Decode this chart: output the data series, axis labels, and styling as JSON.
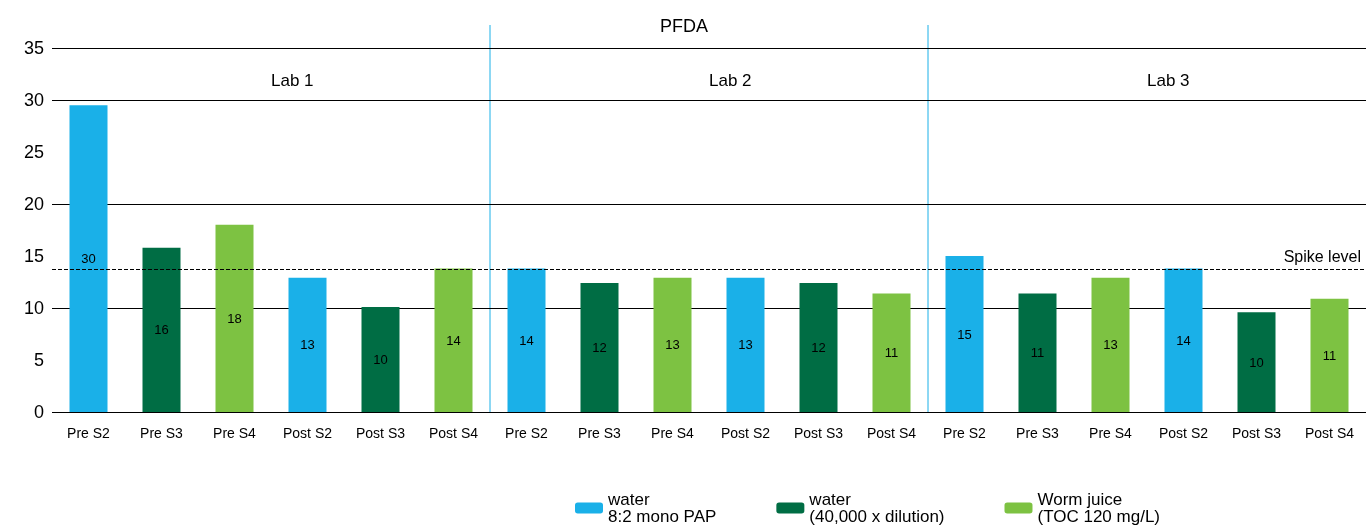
{
  "chart_data": {
    "type": "bar",
    "title": "PFDA",
    "categories": [
      "Pre S2",
      "Pre S3",
      "Pre S4",
      "Post S2",
      "Post S3",
      "Post S4",
      "Pre S2",
      "Pre S3",
      "Pre S4",
      "Post S2",
      "Post S3",
      "Post S4",
      "Pre S2",
      "Pre S3",
      "Pre S4",
      "Post S2",
      "Post S3",
      "Post S4"
    ],
    "series": [
      {
        "name": "water\n8:2 mono PAP",
        "color": "#1ab0e8",
        "values": [
          29.5,
          null,
          null,
          12.9,
          null,
          null,
          13.8,
          null,
          null,
          12.9,
          null,
          null,
          15,
          null,
          null,
          13.8,
          null,
          null
        ],
        "value_labels": [
          "30",
          null,
          null,
          "13",
          null,
          null,
          "14",
          null,
          null,
          "13",
          null,
          null,
          "15",
          null,
          null,
          "14",
          null,
          null
        ]
      },
      {
        "name": "water\n(40,000 x dilution)",
        "color": "#006d44",
        "values": [
          null,
          15.8,
          null,
          null,
          10.1,
          null,
          null,
          12.4,
          null,
          null,
          12.4,
          null,
          null,
          11.4,
          null,
          null,
          9.6,
          null
        ],
        "value_labels": [
          null,
          "16",
          null,
          null,
          "10",
          null,
          null,
          "12",
          null,
          null,
          "12",
          null,
          null,
          "11",
          null,
          null,
          "10",
          null
        ]
      },
      {
        "name": "Worm juice\n(TOC 120 mg/L)",
        "color": "#7dc242",
        "values": [
          null,
          null,
          18,
          null,
          null,
          13.8,
          null,
          null,
          12.9,
          null,
          null,
          11.4,
          null,
          null,
          12.9,
          null,
          null,
          10.9
        ],
        "value_labels": [
          null,
          null,
          "18",
          null,
          null,
          "14",
          null,
          null,
          "13",
          null,
          null,
          "11",
          null,
          null,
          "13",
          null,
          null,
          "11"
        ]
      }
    ],
    "ylim": [
      0,
      35
    ],
    "yticks": [
      0,
      5,
      10,
      15,
      20,
      25,
      30,
      35
    ],
    "grid": "y",
    "legend": "bottom",
    "ref_lines": [
      {
        "axis": "y",
        "value": 13.7,
        "label": "Spike level",
        "line_style": "dashed",
        "color": "#000000"
      }
    ],
    "annotations": [
      "Lab 1",
      "Lab 2",
      "Lab 3"
    ]
  }
}
